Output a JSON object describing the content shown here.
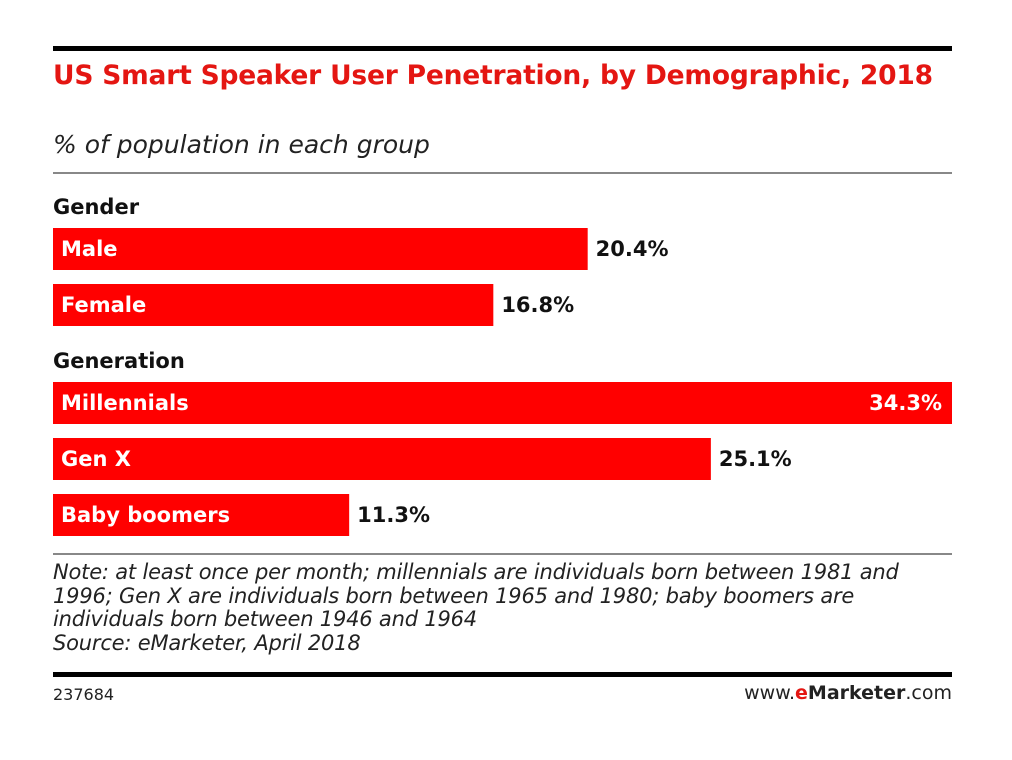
{
  "chart_data": {
    "type": "bar",
    "title": "US Smart Speaker User Penetration, by Demographic, 2018",
    "subtitle": "% of population in each group",
    "groups": [
      {
        "name": "Gender",
        "categories": [
          "Male",
          "Female"
        ],
        "values": [
          20.4,
          16.8
        ],
        "labels": [
          "20.4%",
          "16.8%"
        ]
      },
      {
        "name": "Generation",
        "categories": [
          "Millennials",
          "Gen X",
          "Baby boomers"
        ],
        "values": [
          34.3,
          25.1,
          11.3
        ],
        "labels": [
          "34.3%",
          "25.1%",
          "11.3%"
        ]
      }
    ],
    "xlim": [
      0,
      34.3
    ],
    "grid": false,
    "bar_color": "#ff0000"
  },
  "notes": {
    "note": "Note: at least once per month; millennials are individuals born between 1981 and 1996; Gen X are individuals born between 1965 and 1980; baby boomers are individuals born between 1946 and 1964",
    "source": "Source: eMarketer, April 2018"
  },
  "footer": {
    "chart_id": "237684",
    "brand_prefix": "www.",
    "brand_e": "e",
    "brand_name": "Marketer",
    "brand_suffix": ".com"
  }
}
